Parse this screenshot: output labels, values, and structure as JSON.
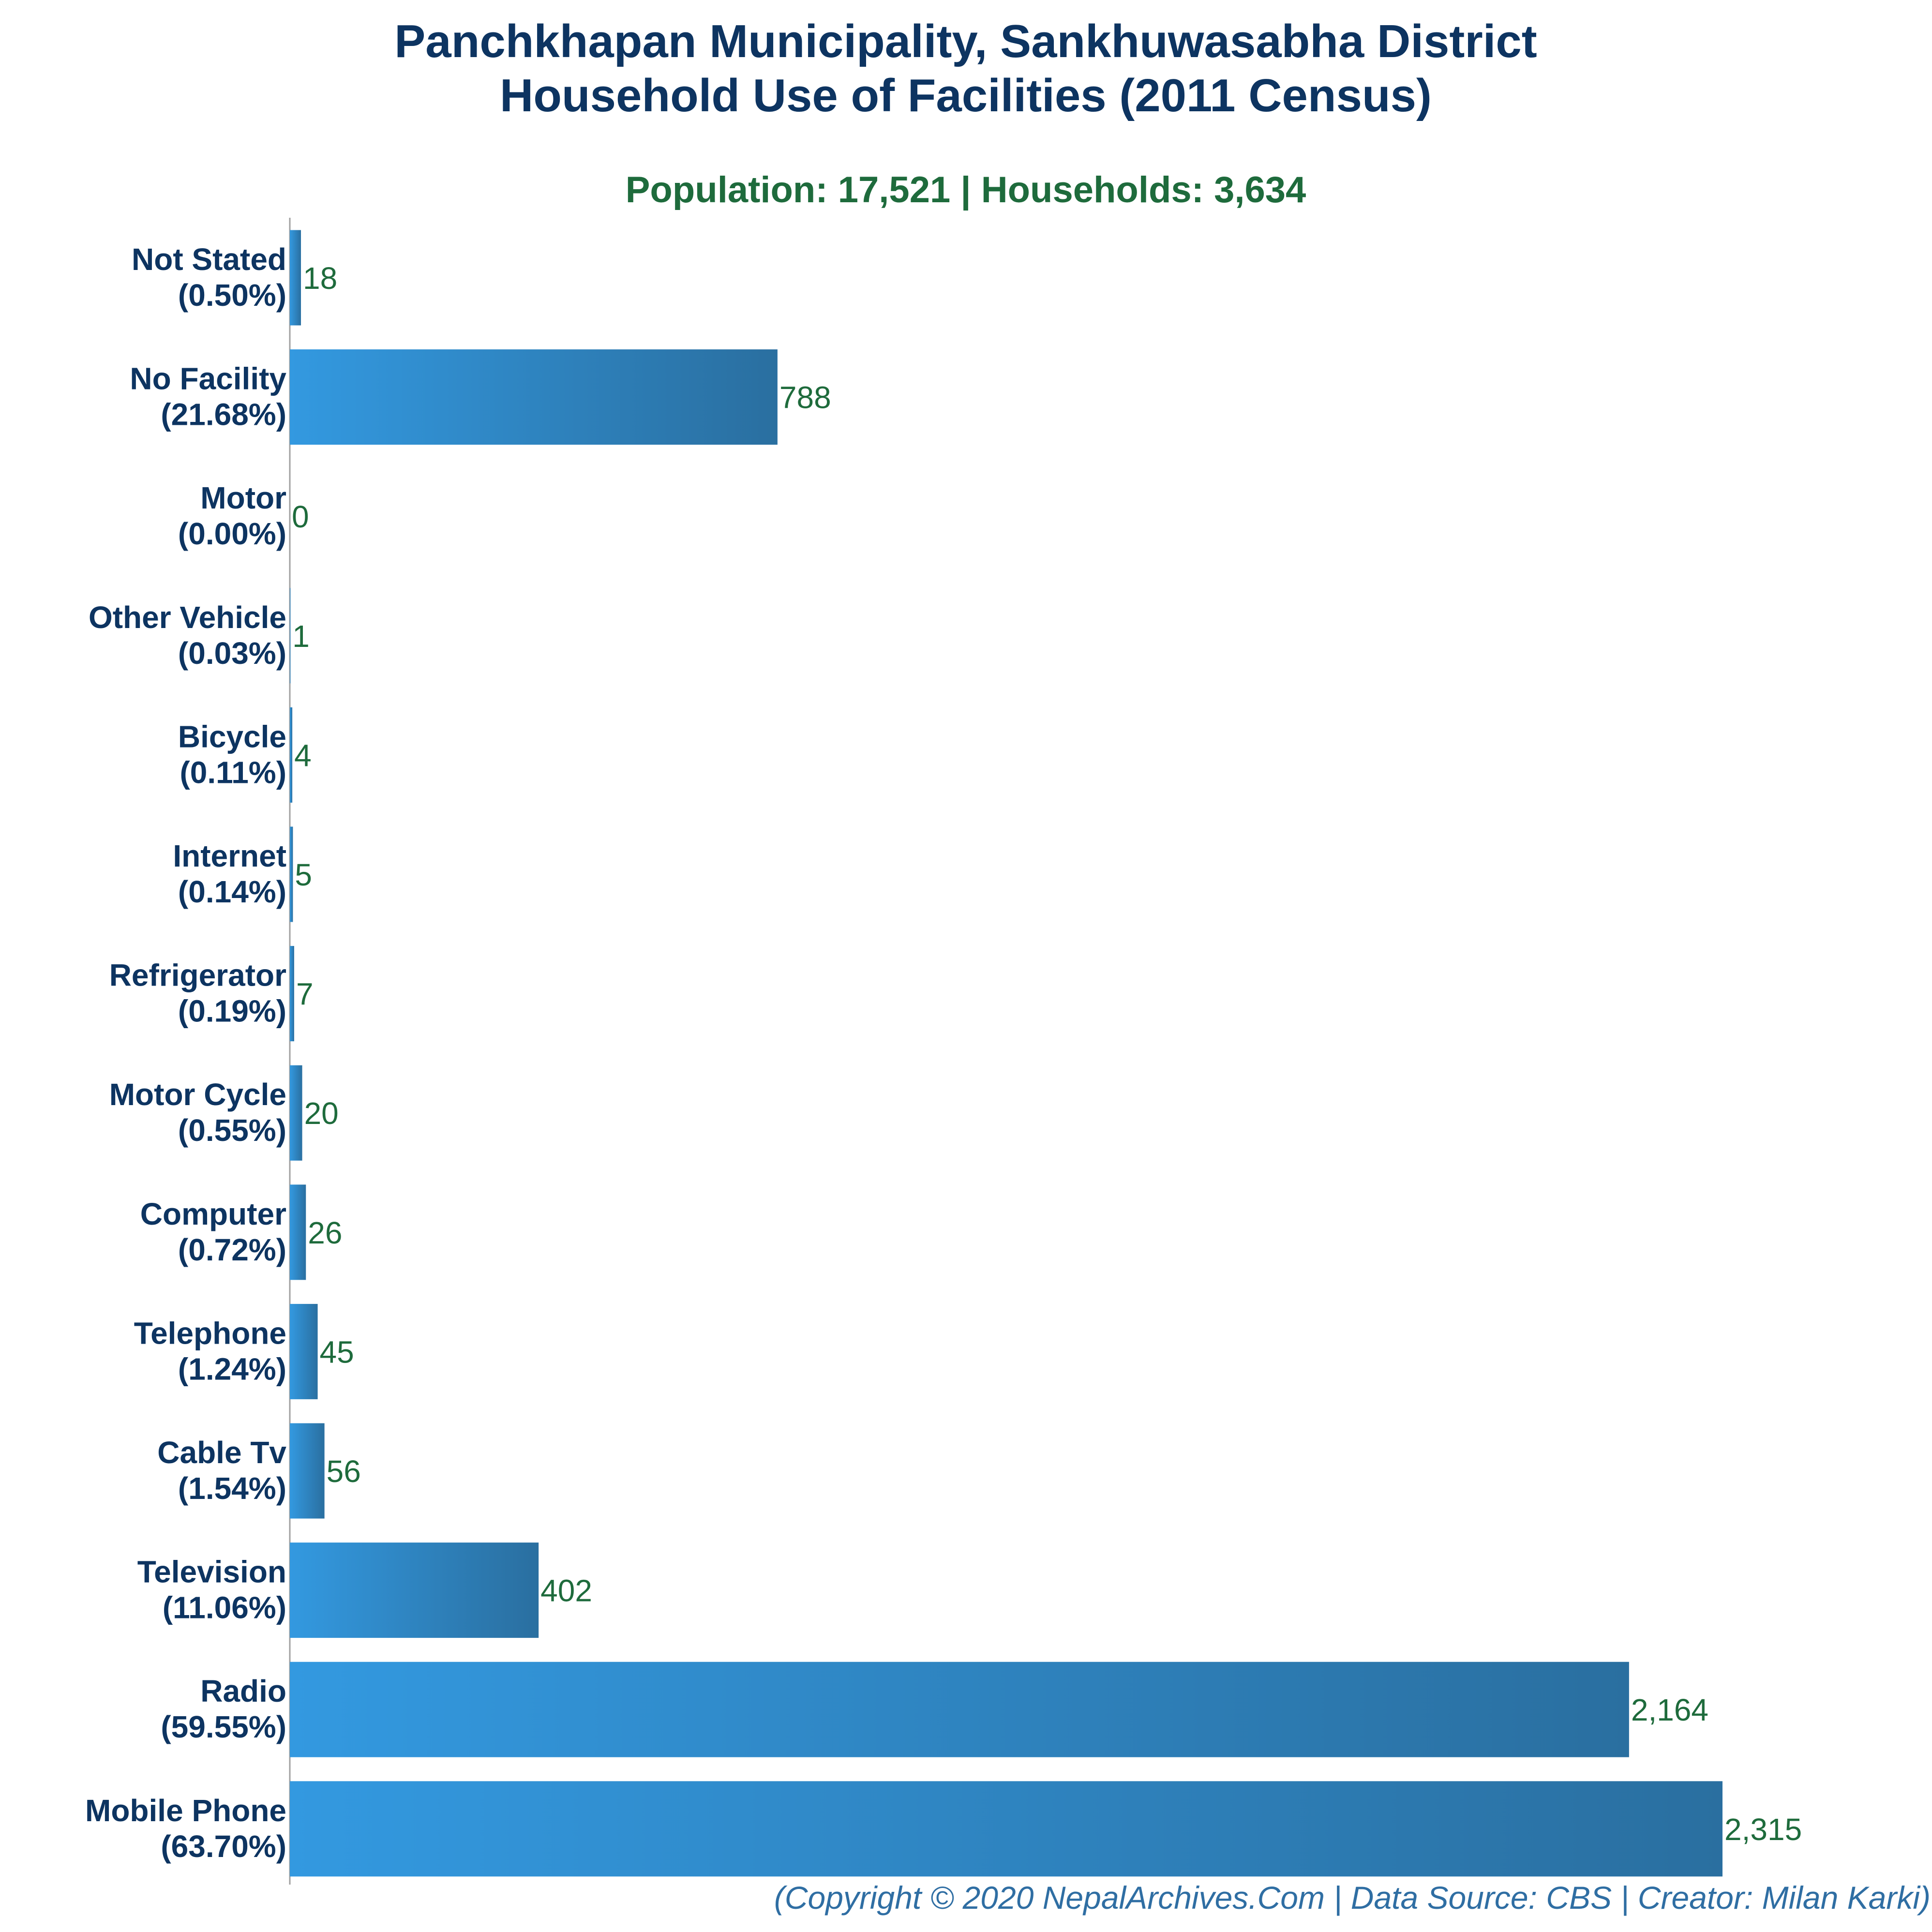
{
  "chart_data": {
    "type": "bar",
    "orientation": "horizontal",
    "title": "Panchkhapan Municipality, Sankhuwasabha District",
    "title_line2": "Household Use of Facilities (2011 Census)",
    "subtitle": "Population: 17,521 | Households: 3,634",
    "footer": "(Copyright © 2020 NepalArchives.Com | Data Source: CBS | Creator: Milan Karki)",
    "categories": [
      "Not Stated",
      "No Facility",
      "Motor",
      "Other Vehicle",
      "Bicycle",
      "Internet",
      "Refrigerator",
      "Motor Cycle",
      "Computer",
      "Telephone",
      "Cable Tv",
      "Television",
      "Radio",
      "Mobile Phone"
    ],
    "percent_labels": [
      "(0.50%)",
      "(21.68%)",
      "(0.00%)",
      "(0.03%)",
      "(0.11%)",
      "(0.14%)",
      "(0.19%)",
      "(0.55%)",
      "(0.72%)",
      "(1.24%)",
      "(1.54%)",
      "(11.06%)",
      "(59.55%)",
      "(63.70%)"
    ],
    "values": [
      18,
      788,
      0,
      1,
      4,
      5,
      7,
      20,
      26,
      45,
      56,
      402,
      2164,
      2315
    ],
    "value_labels": [
      "18",
      "788",
      "0",
      "1",
      "4",
      "5",
      "7",
      "20",
      "26",
      "45",
      "56",
      "402",
      "2,164",
      "2,315"
    ],
    "xlim": [
      0,
      2315
    ],
    "grid": false,
    "colors": {
      "bar_light": "#3399e0",
      "bar_dark": "#2a6fa0",
      "title": "#0d3461",
      "value": "#1e6b3c",
      "footer": "#2f6ea3"
    }
  }
}
